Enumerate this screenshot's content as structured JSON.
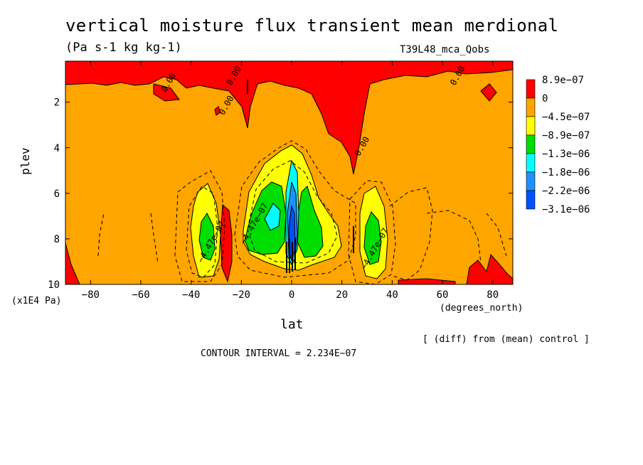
{
  "chart_data": {
    "type": "heatmap",
    "title": "vertical moisture flux transient mean merdional",
    "units": "(Pa s-1 kg kg-1)",
    "run_label": "T39L48_mca_Qobs",
    "xlabel": "lat",
    "x_units": "(degrees_north)",
    "ylabel": "plev",
    "y_units": "(x1E4 Pa)",
    "xlim": [
      -90,
      88
    ],
    "ylim": [
      10,
      0.2
    ],
    "x_ticks": [
      -80,
      -60,
      -40,
      -20,
      0,
      20,
      40,
      60,
      80
    ],
    "x_tick_labels": [
      "−80",
      "−60",
      "−40",
      "−20",
      "0",
      "20",
      "40",
      "60",
      "80"
    ],
    "y_ticks": [
      2,
      4,
      6,
      8,
      10
    ],
    "y_tick_labels": [
      "2",
      "4",
      "6",
      "8",
      "10"
    ],
    "legend": {
      "placement": "right",
      "levels": [
        "8.9e−07",
        "0",
        "−4.5e−07",
        "−8.9e−07",
        "−1.3e−06",
        "−1.8e−06",
        "−2.2e−06",
        "−3.1e−06"
      ],
      "colors": [
        "#ff0000",
        "#ffa500",
        "#ffff00",
        "#00dd00",
        "#00ffff",
        "#1e90ff",
        "#0050ff"
      ]
    },
    "contour_labels": [
      {
        "text": "0.00",
        "lat": -48,
        "plev": 1.2
      },
      {
        "text": "0.00",
        "lat": -22,
        "plev": 0.9
      },
      {
        "text": "0.00",
        "lat": -25,
        "plev": 2.2
      },
      {
        "text": "0.00",
        "lat": 29,
        "plev": 4.0
      },
      {
        "text": "0.00",
        "lat": 67,
        "plev": 0.9
      },
      {
        "text": "−4.47e−07",
        "lat": -31,
        "plev": 8.2
      },
      {
        "text": "−4.47e−07",
        "lat": -14,
        "plev": 7.4
      },
      {
        "text": "−4.47e−07",
        "lat": 34,
        "plev": 8.5
      }
    ],
    "note": "[ (diff) from (mean) control ]",
    "contour_interval": "CONTOUR INTERVAL = 2.234E−07"
  }
}
